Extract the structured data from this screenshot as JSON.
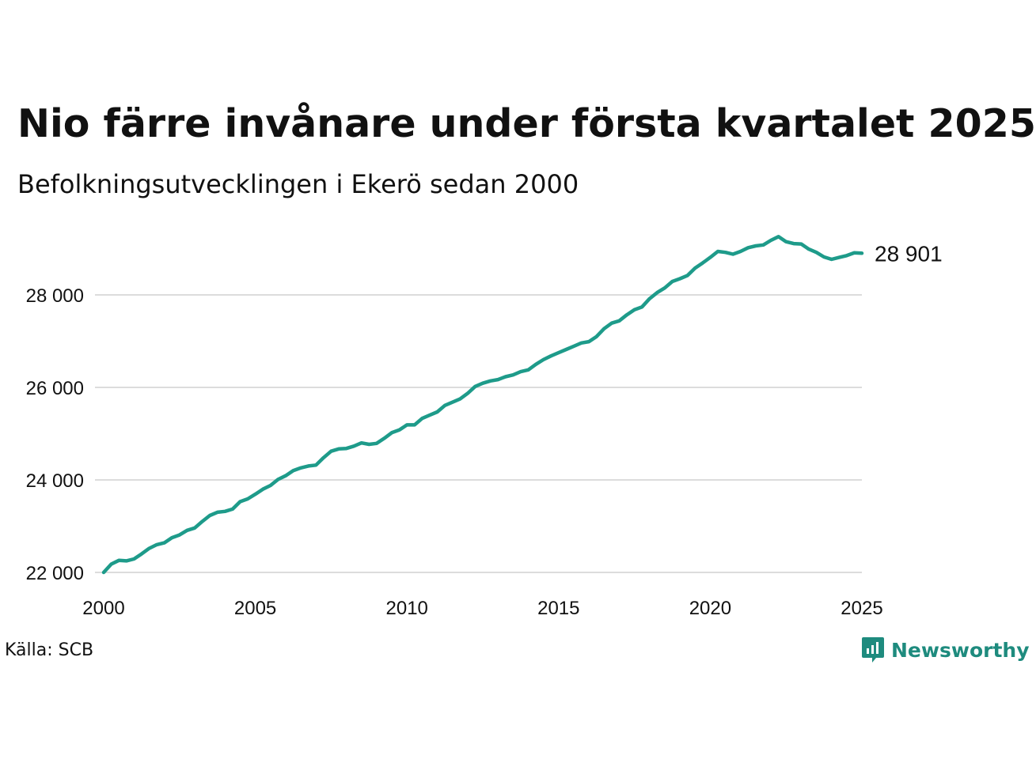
{
  "header": {
    "title": "Nio färre invånare under första kvartalet 2025",
    "subtitle": "Befolkningsutvecklingen i Ekerö sedan 2000"
  },
  "footer": {
    "source": "Källa: SCB",
    "brand": "Newsworthy"
  },
  "colors": {
    "line": "#1e9b8a",
    "grid": "#dcdcdc",
    "brand": "#1e8b7e"
  },
  "chart_data": {
    "type": "line",
    "title": "Nio färre invånare under första kvartalet 2025",
    "subtitle": "Befolkningsutvecklingen i Ekerö sedan 2000",
    "xlabel": "",
    "ylabel": "",
    "xlim": [
      2000,
      2025
    ],
    "ylim": [
      22000,
      29500
    ],
    "yticks": [
      22000,
      24000,
      26000,
      28000
    ],
    "ytick_labels": [
      "22 000",
      "24 000",
      "26 000",
      "28 000"
    ],
    "xticks": [
      2000,
      2005,
      2010,
      2015,
      2020,
      2025
    ],
    "xtick_labels": [
      "2000",
      "2005",
      "2010",
      "2015",
      "2020",
      "2025"
    ],
    "grid": "horizontal",
    "end_label": "28 901",
    "series": [
      {
        "x": [
          2000.0,
          2000.25,
          2000.5,
          2000.75,
          2001.0,
          2001.25,
          2001.5,
          2001.75,
          2002.0,
          2002.25,
          2002.5,
          2002.75,
          2003.0,
          2003.25,
          2003.5,
          2003.75,
          2004.0,
          2004.25,
          2004.5,
          2004.75,
          2005.0,
          2005.25,
          2005.5,
          2005.75,
          2006.0,
          2006.25,
          2006.5,
          2006.75,
          2007.0,
          2007.25,
          2007.5,
          2007.75,
          2008.0,
          2008.25,
          2008.5,
          2008.75,
          2009.0,
          2009.25,
          2009.5,
          2009.75,
          2010.0,
          2010.25,
          2010.5,
          2010.75,
          2011.0,
          2011.25,
          2011.5,
          2011.75,
          2012.0,
          2012.25,
          2012.5,
          2012.75,
          2013.0,
          2013.25,
          2013.5,
          2013.75,
          2014.0,
          2014.25,
          2014.5,
          2014.75,
          2015.0,
          2015.25,
          2015.5,
          2015.75,
          2016.0,
          2016.25,
          2016.5,
          2016.75,
          2017.0,
          2017.25,
          2017.5,
          2017.75,
          2018.0,
          2018.25,
          2018.5,
          2018.75,
          2019.0,
          2019.25,
          2019.5,
          2019.75,
          2020.0,
          2020.25,
          2020.5,
          2020.75,
          2021.0,
          2021.25,
          2021.5,
          2021.75,
          2022.0,
          2022.25,
          2022.5,
          2022.75,
          2023.0,
          2023.25,
          2023.5,
          2023.75,
          2024.0,
          2024.25,
          2024.5,
          2024.75,
          2025.0
        ],
        "values": [
          22000,
          22180,
          22260,
          22250,
          22290,
          22400,
          22520,
          22600,
          22640,
          22750,
          22810,
          22910,
          22960,
          23100,
          23230,
          23300,
          23320,
          23370,
          23530,
          23590,
          23690,
          23800,
          23880,
          24010,
          24090,
          24200,
          24260,
          24300,
          24320,
          24480,
          24620,
          24670,
          24680,
          24730,
          24800,
          24770,
          24790,
          24900,
          25020,
          25080,
          25190,
          25190,
          25330,
          25400,
          25470,
          25610,
          25680,
          25750,
          25870,
          26020,
          26090,
          26140,
          26170,
          26230,
          26270,
          26340,
          26380,
          26500,
          26600,
          26680,
          26750,
          26820,
          26890,
          26960,
          26990,
          27100,
          27270,
          27390,
          27440,
          27570,
          27680,
          27740,
          27920,
          28050,
          28150,
          28290,
          28350,
          28420,
          28580,
          28690,
          28810,
          28940,
          28920,
          28880,
          28940,
          29020,
          29060,
          29080,
          29180,
          29260,
          29150,
          29110,
          29100,
          28990,
          28920,
          28820,
          28770,
          28810,
          28850,
          28910,
          28901
        ]
      }
    ]
  }
}
